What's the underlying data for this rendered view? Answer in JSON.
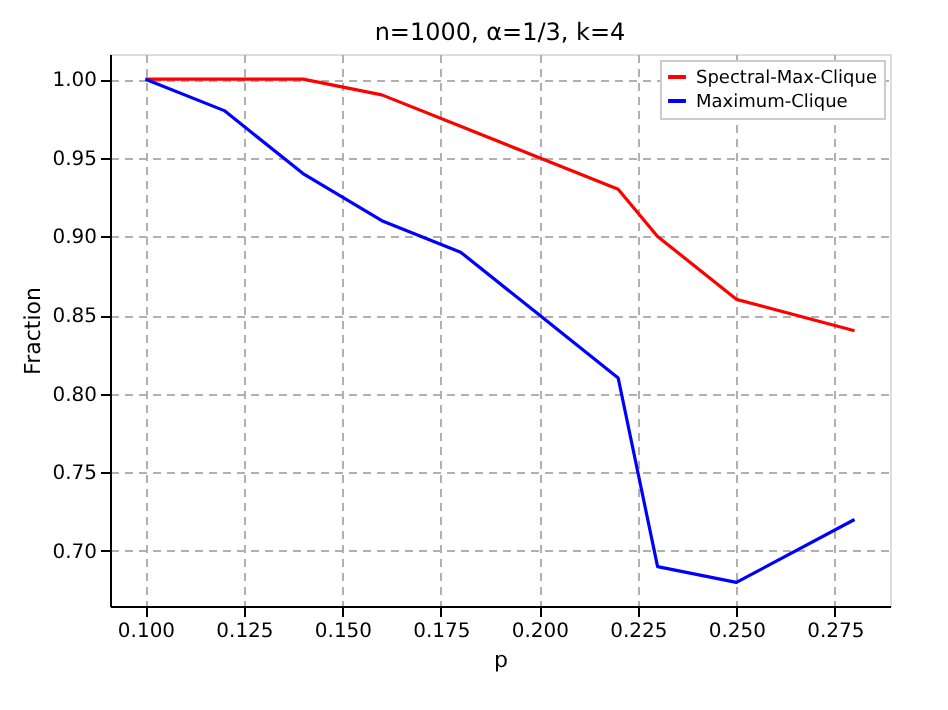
{
  "chart_data": {
    "type": "line",
    "title": "n=1000, α=1/3, k=4",
    "xlabel": "p",
    "ylabel": "Fraction",
    "x": [
      0.1,
      0.12,
      0.14,
      0.16,
      0.18,
      0.2,
      0.22,
      0.23,
      0.25,
      0.28
    ],
    "series": [
      {
        "name": "Spectral-Max-Clique",
        "color": "#ff0000",
        "values": [
          1.0,
          1.0,
          1.0,
          0.99,
          0.97,
          0.95,
          0.93,
          0.9,
          0.86,
          0.84
        ]
      },
      {
        "name": "Maximum-Clique",
        "color": "#0000ff",
        "values": [
          1.0,
          0.98,
          0.94,
          0.91,
          0.89,
          0.85,
          0.81,
          0.69,
          0.68,
          0.72
        ]
      }
    ],
    "xlim": [
      0.091,
      0.289
    ],
    "ylim": [
      0.665,
      1.016
    ],
    "xticks": [
      {
        "value": 0.1,
        "label": "0.100"
      },
      {
        "value": 0.125,
        "label": "0.125"
      },
      {
        "value": 0.15,
        "label": "0.150"
      },
      {
        "value": 0.175,
        "label": "0.175"
      },
      {
        "value": 0.2,
        "label": "0.200"
      },
      {
        "value": 0.225,
        "label": "0.225"
      },
      {
        "value": 0.25,
        "label": "0.250"
      },
      {
        "value": 0.275,
        "label": "0.275"
      }
    ],
    "yticks": [
      {
        "value": 0.7,
        "label": "0.70"
      },
      {
        "value": 0.75,
        "label": "0.75"
      },
      {
        "value": 0.8,
        "label": "0.80"
      },
      {
        "value": 0.85,
        "label": "0.85"
      },
      {
        "value": 0.9,
        "label": "0.90"
      },
      {
        "value": 0.95,
        "label": "0.95"
      },
      {
        "value": 1.0,
        "label": "1.00"
      }
    ],
    "grid": true,
    "legend": "top right",
    "marker": "none",
    "line_style": "solid"
  }
}
